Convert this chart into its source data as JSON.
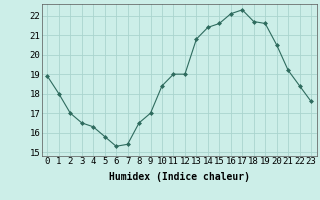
{
  "x": [
    0,
    1,
    2,
    3,
    4,
    5,
    6,
    7,
    8,
    9,
    10,
    11,
    12,
    13,
    14,
    15,
    16,
    17,
    18,
    19,
    20,
    21,
    22,
    23
  ],
  "y": [
    18.9,
    18.0,
    17.0,
    16.5,
    16.3,
    15.8,
    15.3,
    15.4,
    16.5,
    17.0,
    18.4,
    19.0,
    19.0,
    20.8,
    21.4,
    21.6,
    22.1,
    22.3,
    21.7,
    21.6,
    20.5,
    19.2,
    18.4,
    17.6
  ],
  "line_color": "#2e6b5e",
  "marker": "D",
  "marker_size": 2,
  "bg_color": "#cceee8",
  "grid_color": "#aad4ce",
  "xlabel": "Humidex (Indice chaleur)",
  "ylim": [
    14.8,
    22.6
  ],
  "xlim": [
    -0.5,
    23.5
  ],
  "yticks": [
    15,
    16,
    17,
    18,
    19,
    20,
    21,
    22
  ],
  "xticks": [
    0,
    1,
    2,
    3,
    4,
    5,
    6,
    7,
    8,
    9,
    10,
    11,
    12,
    13,
    14,
    15,
    16,
    17,
    18,
    19,
    20,
    21,
    22,
    23
  ],
  "xlabel_fontsize": 7,
  "tick_fontsize": 6.5
}
